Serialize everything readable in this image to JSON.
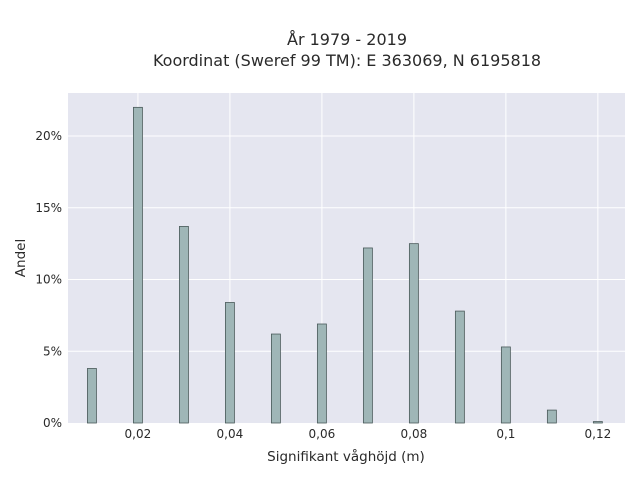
{
  "chart_data": {
    "type": "bar",
    "title_lines": [
      "År 1979 - 2019",
      "Koordinat (Sweref 99 TM): E 363069, N 6195818"
    ],
    "xlabel": "Signifikant våghöjd (m)",
    "ylabel": "Andel",
    "x": [
      0.01,
      0.02,
      0.03,
      0.04,
      0.05,
      0.06,
      0.07,
      0.08,
      0.09,
      0.1,
      0.11,
      0.12
    ],
    "values": [
      3.8,
      22.0,
      13.7,
      8.4,
      6.2,
      6.9,
      12.2,
      12.5,
      7.8,
      5.3,
      0.9,
      0.1
    ],
    "value_unit": "%",
    "xlim": [
      0.0048,
      0.1259
    ],
    "ylim": [
      0,
      23.0
    ],
    "x_ticks": [
      {
        "value": 0.02,
        "label": "0,02"
      },
      {
        "value": 0.04,
        "label": "0,04"
      },
      {
        "value": 0.06,
        "label": "0,06"
      },
      {
        "value": 0.08,
        "label": "0,08"
      },
      {
        "value": 0.1,
        "label": "0,1"
      },
      {
        "value": 0.12,
        "label": "0,12"
      }
    ],
    "y_ticks": [
      {
        "value": 0,
        "label": "0%"
      },
      {
        "value": 5,
        "label": "5%"
      },
      {
        "value": 10,
        "label": "10%"
      },
      {
        "value": 15,
        "label": "15%"
      },
      {
        "value": 20,
        "label": "20%"
      }
    ],
    "grid": true,
    "colors": {
      "bar_fill": "#9fb6b7",
      "bar_stroke": "#4a5a5a",
      "plot_bg": "#e5e6f0",
      "grid": "#ffffff"
    }
  }
}
